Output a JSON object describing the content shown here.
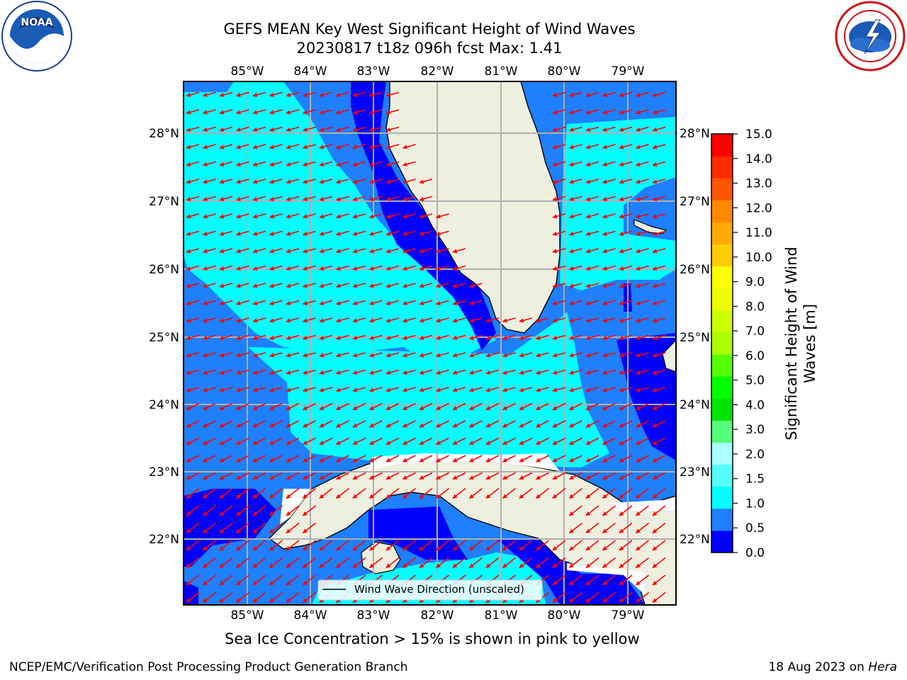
{
  "title": {
    "line1": "GEFS MEAN Key West Significant Height of Wind Waves",
    "line2": "20230817 t18z 096h fcst   Max: 1.41"
  },
  "logos": {
    "left": "noaa-logo",
    "left_text": "NOAA",
    "right": "nws-logo"
  },
  "map": {
    "lon_labels": [
      "85°W",
      "84°W",
      "83°W",
      "82°W",
      "81°W",
      "80°W",
      "79°W"
    ],
    "lat_labels": [
      "28°N",
      "27°N",
      "26°N",
      "25°N",
      "24°N",
      "23°N",
      "22°N"
    ],
    "legend_label": "Wind Wave Direction (unscaled)",
    "colors": {
      "land": "#efefdf",
      "level_0_0p5": "#0000ff",
      "level_0p5_1": "#1e7fff",
      "level_1_1p5": "#00ffff",
      "arrow": "#ff0000",
      "grid": "#b0b0b0"
    }
  },
  "colorbar": {
    "label_line1": "Significant Height of Wind",
    "label_line2": "Waves [m]",
    "ticks": [
      "15.0",
      "14.0",
      "13.0",
      "12.0",
      "11.0",
      "10.0",
      "9.0",
      "8.0",
      "7.0",
      "6.0",
      "5.0",
      "4.0",
      "3.0",
      "2.0",
      "1.5",
      "1.0",
      "0.5",
      "0.0"
    ],
    "colors": [
      "#0000ff",
      "#1e7fff",
      "#00ffff",
      "#55ffff",
      "#aaffff",
      "#55ff77",
      "#00e400",
      "#00ff00",
      "#55ff00",
      "#aaff00",
      "#ccff00",
      "#eeff00",
      "#ffff00",
      "#ffcc00",
      "#ffaa00",
      "#ff8800",
      "#ff5500",
      "#ff2a00",
      "#ff0000"
    ]
  },
  "caption": "Sea Ice Concentration > 15% is shown in pink to yellow",
  "footer": {
    "left": "NCEP/EMC/Verification Post Processing Product Generation Branch",
    "right_prefix": "18 Aug 2023 on ",
    "right_host": "Hera"
  }
}
